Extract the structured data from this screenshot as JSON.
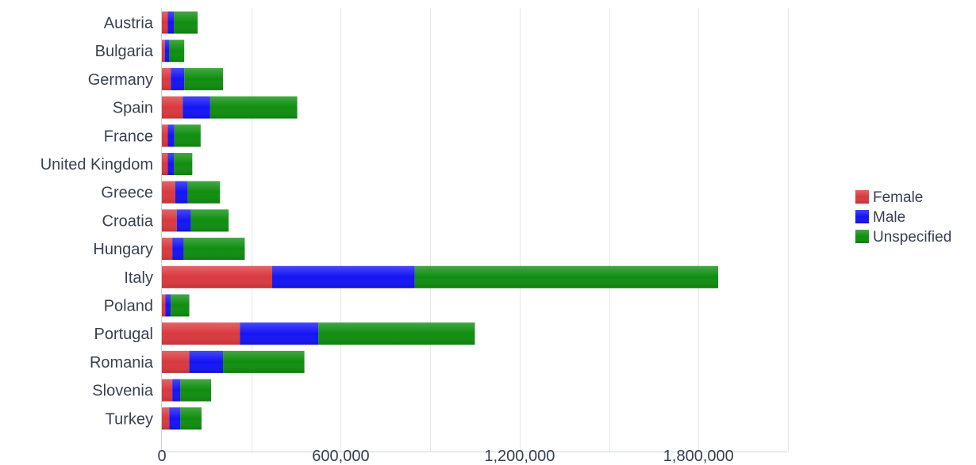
{
  "chart_data": {
    "type": "bar",
    "orientation": "horizontal",
    "stacked": true,
    "categories": [
      "Austria",
      "Bulgaria",
      "Germany",
      "Spain",
      "France",
      "United Kingdom",
      "Greece",
      "Croatia",
      "Hungary",
      "Italy",
      "Poland",
      "Portugal",
      "Romania",
      "Slovenia",
      "Turkey"
    ],
    "series": [
      {
        "name": "Female",
        "color": "#d9393e",
        "values": [
          20000,
          10000,
          30000,
          70000,
          20000,
          20000,
          45000,
          50000,
          35000,
          370000,
          12000,
          262000,
          92000,
          35000,
          25000
        ]
      },
      {
        "name": "Male",
        "color": "#1414f5",
        "values": [
          20000,
          15000,
          45000,
          92000,
          22000,
          20000,
          42000,
          47000,
          38000,
          478000,
          18000,
          263000,
          113000,
          27000,
          37000
        ]
      },
      {
        "name": "Unspecified",
        "color": "#0f8e0f",
        "values": [
          80000,
          50000,
          130000,
          292000,
          88000,
          62000,
          108000,
          127000,
          205000,
          1018000,
          62000,
          525000,
          273000,
          103000,
          71000
        ]
      }
    ],
    "xlim": [
      0,
      2100000
    ],
    "xticks": [
      "0",
      "600,000",
      "1,200,000",
      "1,800,000"
    ],
    "xtick_values": [
      0,
      600000,
      1200000,
      1800000
    ],
    "grid": true,
    "legend_position": "right",
    "title": "",
    "xlabel": "",
    "ylabel": ""
  }
}
